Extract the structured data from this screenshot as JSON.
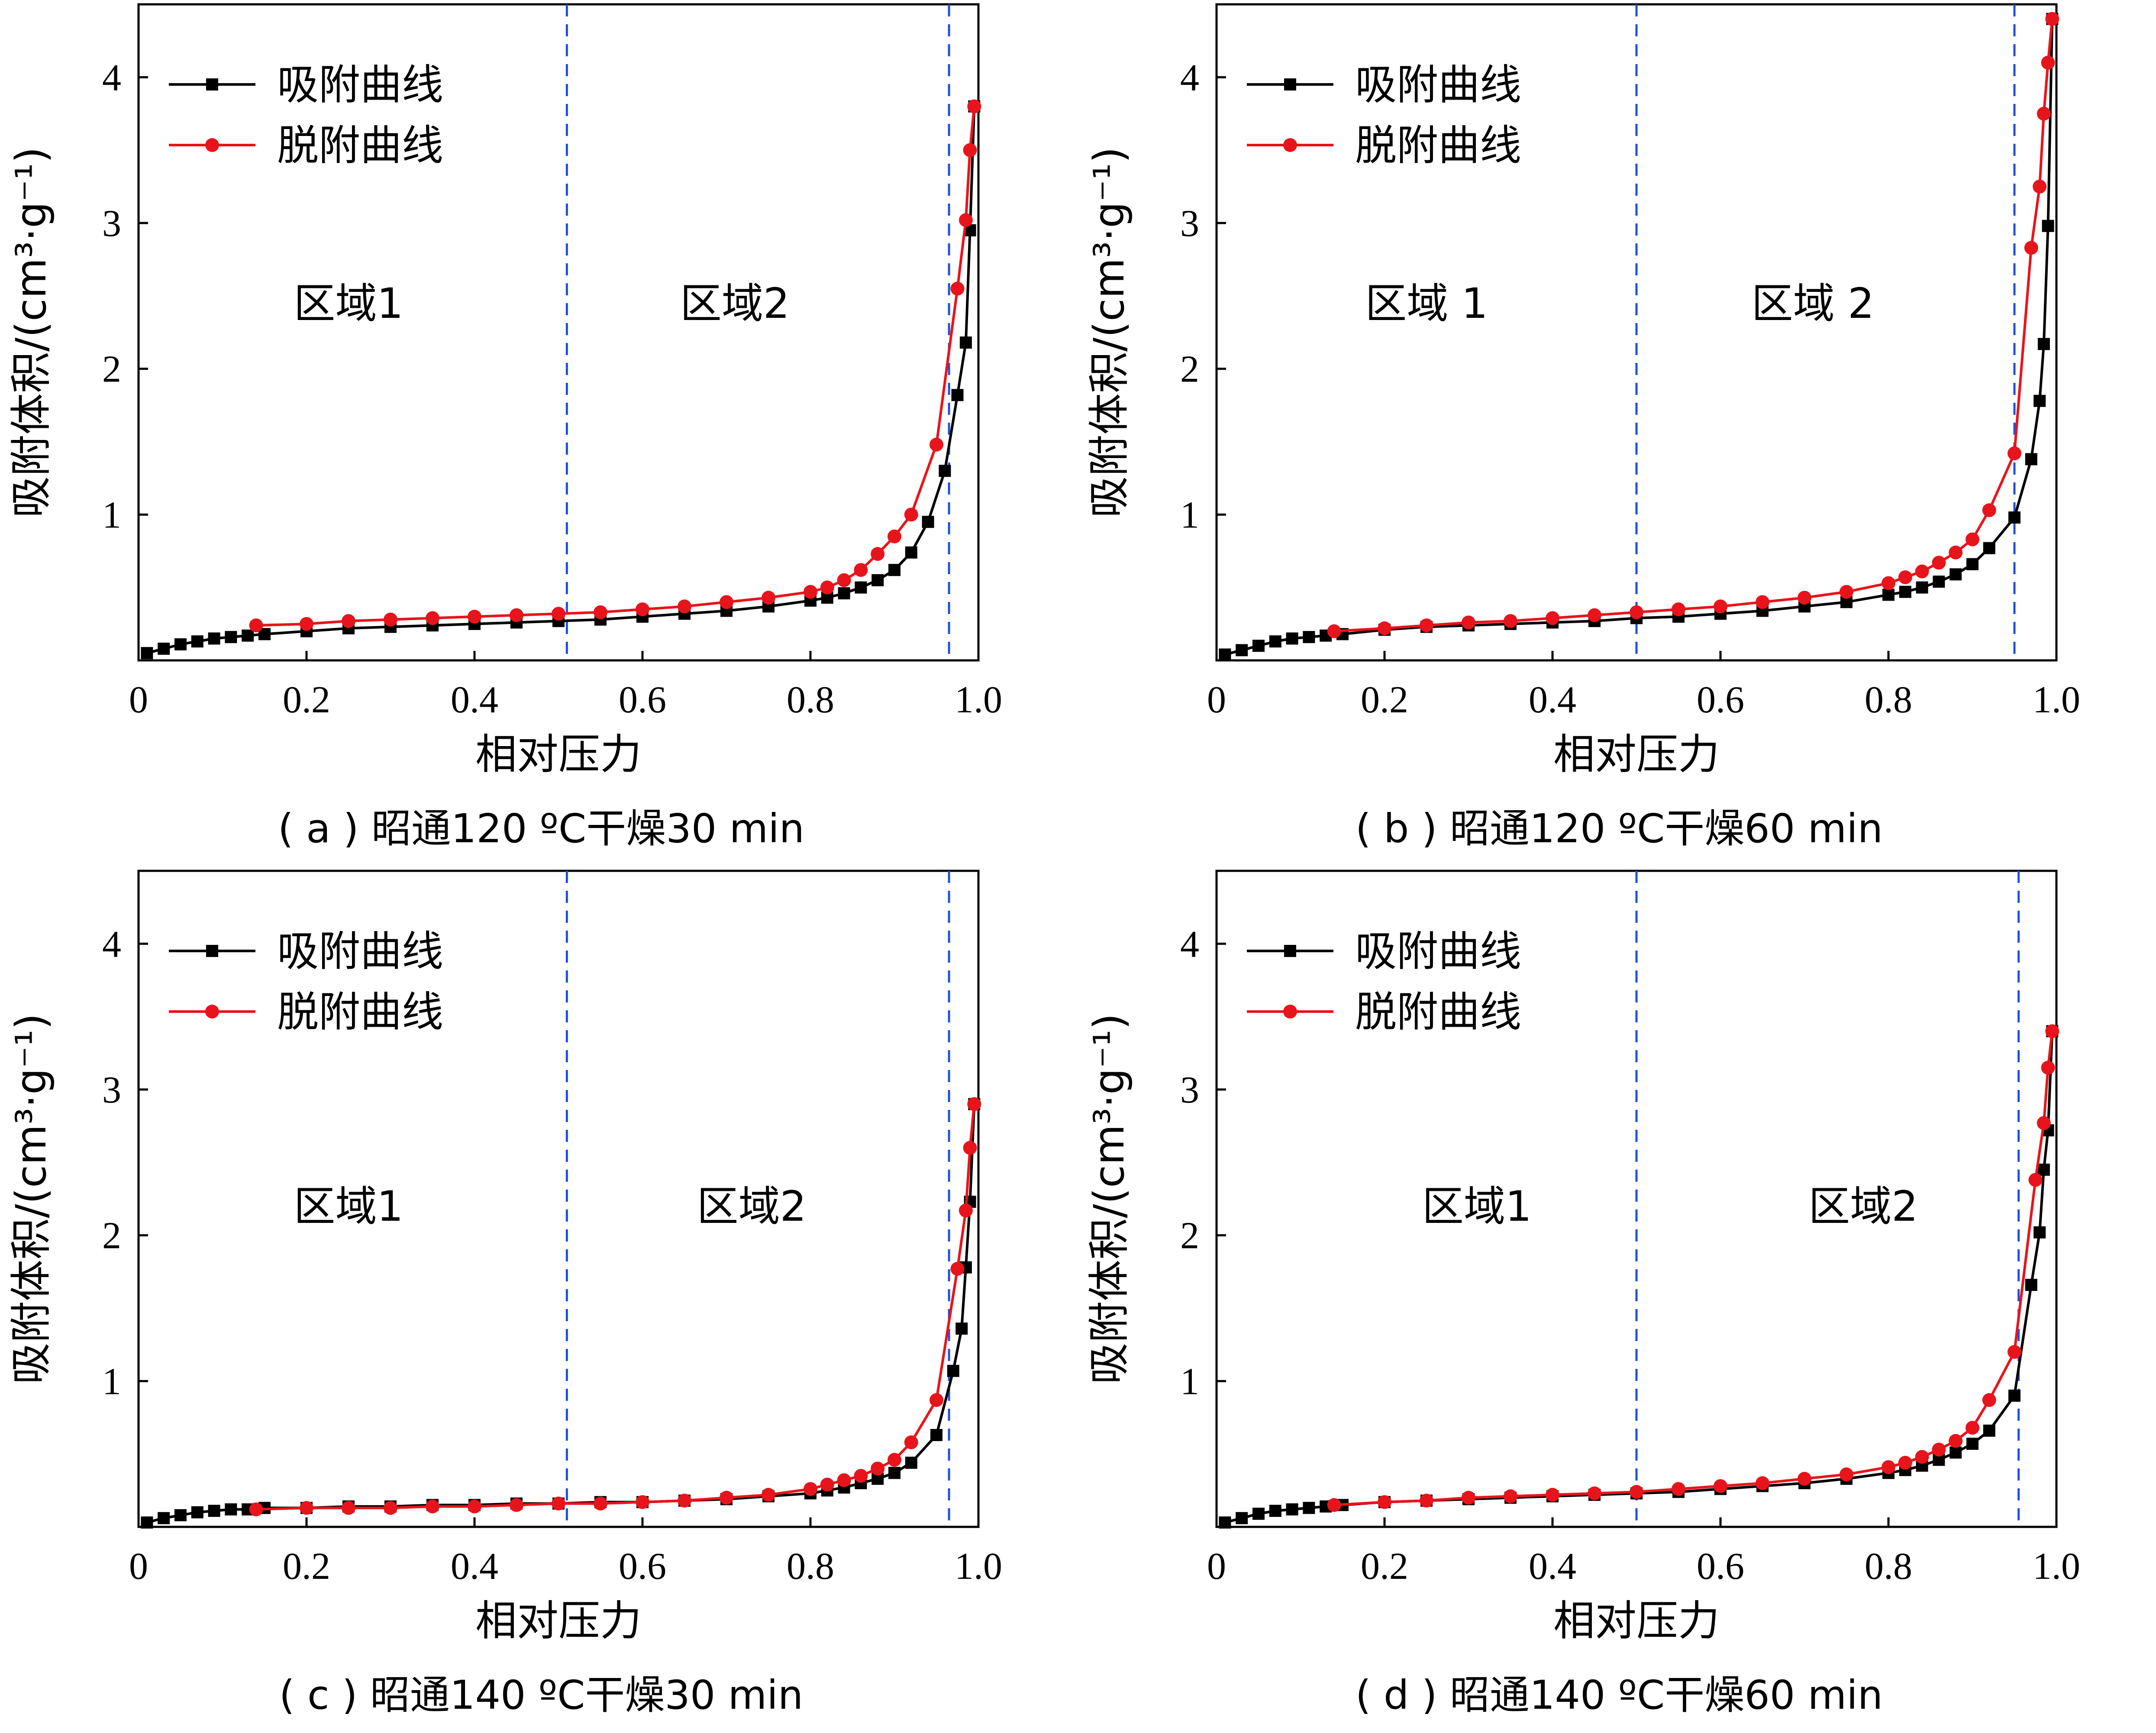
{
  "colors": {
    "adsorption": "#000000",
    "desorption": "#e8141b",
    "divider": "#1f4fe0",
    "axis": "#000000"
  },
  "chart_data": [
    {
      "type": "line",
      "panel": "a",
      "caption": "( a ) 昭通120 ºC干燥30 min",
      "xlabel": "相对压力",
      "ylabel": "吸附体积/(cm³·g⁻¹)",
      "xlim": [
        0,
        1.0
      ],
      "ylim": [
        0,
        4.5
      ],
      "xticks": [
        0,
        0.2,
        0.4,
        0.6,
        0.8,
        1.0
      ],
      "xtick_labels": [
        "0",
        "0.2",
        "0.4",
        "0.6",
        "0.8",
        "1.0"
      ],
      "yticks": [
        1,
        2,
        3,
        4
      ],
      "ytick_labels": [
        "1",
        "2",
        "3",
        "4"
      ],
      "legend_position": "top-left",
      "dividers": [
        0.51,
        0.965
      ],
      "regions": [
        {
          "label": "区域1",
          "x": 0.25,
          "y": 2.35
        },
        {
          "label": "区域2",
          "x": 0.71,
          "y": 2.35
        }
      ],
      "series": [
        {
          "name": "吸附曲线",
          "marker": "square",
          "x": [
            0.01,
            0.03,
            0.05,
            0.07,
            0.09,
            0.11,
            0.13,
            0.15,
            0.2,
            0.25,
            0.3,
            0.35,
            0.4,
            0.45,
            0.5,
            0.55,
            0.6,
            0.65,
            0.7,
            0.75,
            0.8,
            0.82,
            0.84,
            0.86,
            0.88,
            0.9,
            0.92,
            0.94,
            0.96,
            0.975,
            0.985,
            0.99,
            0.995
          ],
          "y": [
            0.05,
            0.08,
            0.11,
            0.13,
            0.15,
            0.16,
            0.17,
            0.18,
            0.2,
            0.22,
            0.23,
            0.24,
            0.25,
            0.26,
            0.27,
            0.28,
            0.3,
            0.32,
            0.34,
            0.37,
            0.41,
            0.43,
            0.46,
            0.5,
            0.55,
            0.62,
            0.74,
            0.95,
            1.3,
            1.82,
            2.18,
            2.95,
            3.8
          ]
        },
        {
          "name": "脱附曲线",
          "marker": "circle",
          "x": [
            0.14,
            0.2,
            0.25,
            0.3,
            0.35,
            0.4,
            0.45,
            0.5,
            0.55,
            0.6,
            0.65,
            0.7,
            0.75,
            0.8,
            0.82,
            0.84,
            0.86,
            0.88,
            0.9,
            0.92,
            0.95,
            0.975,
            0.985,
            0.99,
            0.995
          ],
          "y": [
            0.24,
            0.25,
            0.27,
            0.28,
            0.29,
            0.3,
            0.31,
            0.32,
            0.33,
            0.35,
            0.37,
            0.4,
            0.43,
            0.47,
            0.5,
            0.55,
            0.62,
            0.73,
            0.85,
            1.0,
            1.48,
            2.55,
            3.02,
            3.5,
            3.8
          ]
        }
      ]
    },
    {
      "type": "line",
      "panel": "b",
      "caption": "( b ) 昭通120 ºC干燥60 min",
      "xlabel": "相对压力",
      "ylabel": "吸附体积/(cm³·g⁻¹)",
      "xlim": [
        0,
        1.0
      ],
      "ylim": [
        0,
        4.5
      ],
      "xticks": [
        0,
        0.2,
        0.4,
        0.6,
        0.8,
        1.0
      ],
      "xtick_labels": [
        "0",
        "0.2",
        "0.4",
        "0.6",
        "0.8",
        "1.0"
      ],
      "yticks": [
        1,
        2,
        3,
        4
      ],
      "ytick_labels": [
        "1",
        "2",
        "3",
        "4"
      ],
      "legend_position": "top-left",
      "dividers": [
        0.5,
        0.95
      ],
      "regions": [
        {
          "label": "区域 1",
          "x": 0.25,
          "y": 2.35
        },
        {
          "label": "区域 2",
          "x": 0.71,
          "y": 2.35
        }
      ],
      "series": [
        {
          "name": "吸附曲线",
          "marker": "square",
          "x": [
            0.01,
            0.03,
            0.05,
            0.07,
            0.09,
            0.11,
            0.13,
            0.15,
            0.2,
            0.25,
            0.3,
            0.35,
            0.4,
            0.45,
            0.5,
            0.55,
            0.6,
            0.65,
            0.7,
            0.75,
            0.8,
            0.82,
            0.84,
            0.86,
            0.88,
            0.9,
            0.92,
            0.95,
            0.97,
            0.98,
            0.985,
            0.99,
            0.995
          ],
          "y": [
            0.04,
            0.07,
            0.1,
            0.13,
            0.15,
            0.16,
            0.17,
            0.18,
            0.21,
            0.23,
            0.24,
            0.25,
            0.26,
            0.27,
            0.29,
            0.3,
            0.32,
            0.34,
            0.37,
            0.4,
            0.45,
            0.47,
            0.5,
            0.54,
            0.59,
            0.66,
            0.77,
            0.98,
            1.38,
            1.78,
            2.17,
            2.98,
            4.4
          ]
        },
        {
          "name": "脱附曲线",
          "marker": "circle",
          "x": [
            0.14,
            0.2,
            0.25,
            0.3,
            0.35,
            0.4,
            0.45,
            0.5,
            0.55,
            0.6,
            0.65,
            0.7,
            0.75,
            0.8,
            0.82,
            0.84,
            0.86,
            0.88,
            0.9,
            0.92,
            0.95,
            0.97,
            0.98,
            0.985,
            0.99,
            0.995
          ],
          "y": [
            0.2,
            0.22,
            0.24,
            0.26,
            0.27,
            0.29,
            0.31,
            0.33,
            0.35,
            0.37,
            0.4,
            0.43,
            0.47,
            0.53,
            0.57,
            0.61,
            0.67,
            0.74,
            0.83,
            1.03,
            1.42,
            2.83,
            3.25,
            3.75,
            4.1,
            4.4
          ]
        }
      ]
    },
    {
      "type": "line",
      "panel": "c",
      "caption": "( c ) 昭通140 ºC干燥30 min",
      "xlabel": "相对压力",
      "ylabel": "吸附体积/(cm³·g⁻¹)",
      "xlim": [
        0,
        1.0
      ],
      "ylim": [
        0,
        4.5
      ],
      "xticks": [
        0,
        0.2,
        0.4,
        0.6,
        0.8,
        1.0
      ],
      "xtick_labels": [
        "0",
        "0.2",
        "0.4",
        "0.6",
        "0.8",
        "1.0"
      ],
      "yticks": [
        1,
        2,
        3,
        4
      ],
      "ytick_labels": [
        "1",
        "2",
        "3",
        "4"
      ],
      "legend_position": "top-left",
      "dividers": [
        0.51,
        0.965
      ],
      "regions": [
        {
          "label": "区域1",
          "x": 0.25,
          "y": 2.1
        },
        {
          "label": "区域2",
          "x": 0.73,
          "y": 2.1
        }
      ],
      "series": [
        {
          "name": "吸附曲线",
          "marker": "square",
          "x": [
            0.01,
            0.03,
            0.05,
            0.07,
            0.09,
            0.11,
            0.13,
            0.15,
            0.2,
            0.25,
            0.3,
            0.35,
            0.4,
            0.45,
            0.5,
            0.55,
            0.6,
            0.65,
            0.7,
            0.75,
            0.8,
            0.82,
            0.84,
            0.86,
            0.88,
            0.9,
            0.92,
            0.95,
            0.97,
            0.98,
            0.985,
            0.99,
            0.995
          ],
          "y": [
            0.03,
            0.06,
            0.08,
            0.1,
            0.11,
            0.12,
            0.12,
            0.13,
            0.13,
            0.14,
            0.14,
            0.15,
            0.15,
            0.16,
            0.16,
            0.17,
            0.17,
            0.18,
            0.19,
            0.21,
            0.23,
            0.25,
            0.27,
            0.3,
            0.33,
            0.37,
            0.44,
            0.63,
            1.07,
            1.36,
            1.78,
            2.23,
            2.9
          ]
        },
        {
          "name": "脱附曲线",
          "marker": "circle",
          "x": [
            0.14,
            0.2,
            0.25,
            0.3,
            0.35,
            0.4,
            0.45,
            0.5,
            0.55,
            0.6,
            0.65,
            0.7,
            0.75,
            0.8,
            0.82,
            0.84,
            0.86,
            0.88,
            0.9,
            0.92,
            0.95,
            0.975,
            0.985,
            0.99,
            0.995
          ],
          "y": [
            0.12,
            0.13,
            0.13,
            0.13,
            0.14,
            0.14,
            0.15,
            0.16,
            0.16,
            0.17,
            0.18,
            0.2,
            0.22,
            0.26,
            0.29,
            0.32,
            0.35,
            0.4,
            0.46,
            0.58,
            0.87,
            1.77,
            2.17,
            2.6,
            2.9
          ]
        }
      ]
    },
    {
      "type": "line",
      "panel": "d",
      "caption": "( d ) 昭通140 ºC干燥60 min",
      "xlabel": "相对压力",
      "ylabel": "吸附体积/(cm³·g⁻¹)",
      "xlim": [
        0,
        1.0
      ],
      "ylim": [
        0,
        4.5
      ],
      "xticks": [
        0,
        0.2,
        0.4,
        0.6,
        0.8,
        1.0
      ],
      "xtick_labels": [
        "0",
        "0.2",
        "0.4",
        "0.6",
        "0.8",
        "1.0"
      ],
      "yticks": [
        1,
        2,
        3,
        4
      ],
      "ytick_labels": [
        "1",
        "2",
        "3",
        "4"
      ],
      "legend_position": "top-left",
      "dividers": [
        0.5,
        0.955
      ],
      "regions": [
        {
          "label": "区域1",
          "x": 0.31,
          "y": 2.1
        },
        {
          "label": "区域2",
          "x": 0.77,
          "y": 2.1
        }
      ],
      "series": [
        {
          "name": "吸附曲线",
          "marker": "square",
          "x": [
            0.01,
            0.03,
            0.05,
            0.07,
            0.09,
            0.11,
            0.13,
            0.15,
            0.2,
            0.25,
            0.3,
            0.35,
            0.4,
            0.45,
            0.5,
            0.55,
            0.6,
            0.65,
            0.7,
            0.75,
            0.8,
            0.82,
            0.84,
            0.86,
            0.88,
            0.9,
            0.92,
            0.95,
            0.97,
            0.98,
            0.985,
            0.99,
            0.995
          ],
          "y": [
            0.03,
            0.06,
            0.09,
            0.11,
            0.12,
            0.13,
            0.14,
            0.15,
            0.17,
            0.18,
            0.19,
            0.2,
            0.21,
            0.22,
            0.23,
            0.24,
            0.26,
            0.28,
            0.3,
            0.33,
            0.37,
            0.39,
            0.42,
            0.46,
            0.51,
            0.57,
            0.66,
            0.9,
            1.66,
            2.02,
            2.45,
            2.72,
            3.4
          ]
        },
        {
          "name": "脱附曲线",
          "marker": "circle",
          "x": [
            0.14,
            0.2,
            0.25,
            0.3,
            0.35,
            0.4,
            0.45,
            0.5,
            0.55,
            0.6,
            0.65,
            0.7,
            0.75,
            0.8,
            0.82,
            0.84,
            0.86,
            0.88,
            0.9,
            0.92,
            0.95,
            0.975,
            0.985,
            0.99,
            0.995
          ],
          "y": [
            0.15,
            0.17,
            0.18,
            0.2,
            0.21,
            0.22,
            0.23,
            0.24,
            0.26,
            0.28,
            0.3,
            0.33,
            0.36,
            0.41,
            0.44,
            0.48,
            0.53,
            0.59,
            0.68,
            0.87,
            1.2,
            2.38,
            2.77,
            3.15,
            3.4
          ]
        }
      ]
    }
  ]
}
